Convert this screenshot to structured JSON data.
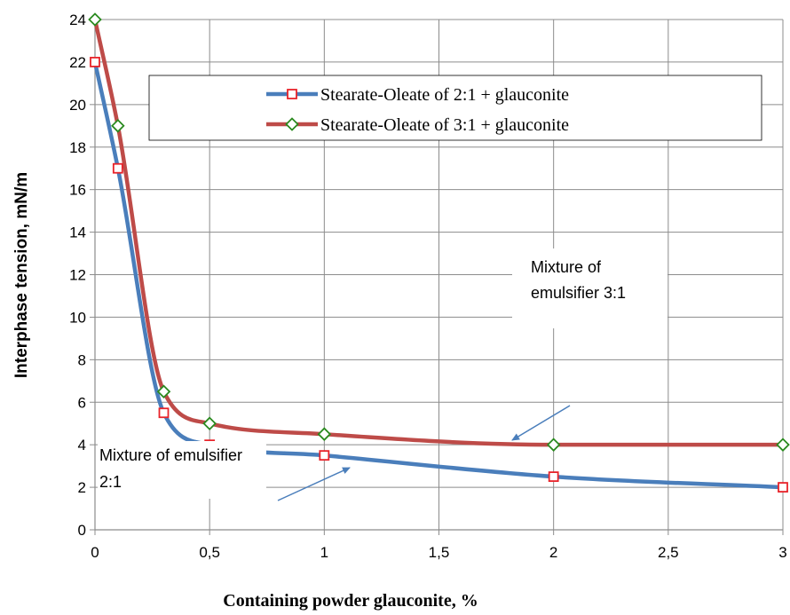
{
  "chart_data": {
    "type": "line",
    "xlabel": "Containing powder glauconite, %",
    "ylabel": "Interphase tension, mN/m",
    "xlim": [
      0,
      3
    ],
    "ylim": [
      0,
      24
    ],
    "xticks": [
      "0",
      "0,5",
      "1",
      "1,5",
      "2",
      "2,5",
      "3"
    ],
    "yticks": [
      "0",
      "2",
      "4",
      "6",
      "8",
      "10",
      "12",
      "14",
      "16",
      "18",
      "20",
      "22",
      "24"
    ],
    "grid": true,
    "legend_position": "top-right",
    "series": [
      {
        "name": "Stearate-Oleate of 2:1 + glauconite",
        "color": "#4a7ebb",
        "marker": "square",
        "marker_color": "#e8232a",
        "x": [
          0,
          0.1,
          0.3,
          0.5,
          1,
          2,
          3
        ],
        "y": [
          22,
          17,
          5.5,
          4,
          3.5,
          2.5,
          2
        ]
      },
      {
        "name": "Stearate-Oleate of 3:1 + glauconite",
        "color": "#be4b48",
        "marker": "diamond",
        "marker_color": "#2a8a1f",
        "x": [
          0,
          0.1,
          0.3,
          0.5,
          1,
          2,
          3
        ],
        "y": [
          24,
          19,
          6.5,
          5,
          4.5,
          4,
          4
        ]
      }
    ],
    "annotations": [
      {
        "lines": [
          "Mixture of",
          "emulsifier 3:1"
        ],
        "points_to": "Stearate-Oleate of 3:1 + glauconite"
      },
      {
        "lines": [
          "Mixture of emulsifier",
          "2:1"
        ],
        "points_to": "Stearate-Oleate of 2:1 + glauconite"
      }
    ],
    "annotation_color": "#4a7ebb"
  }
}
